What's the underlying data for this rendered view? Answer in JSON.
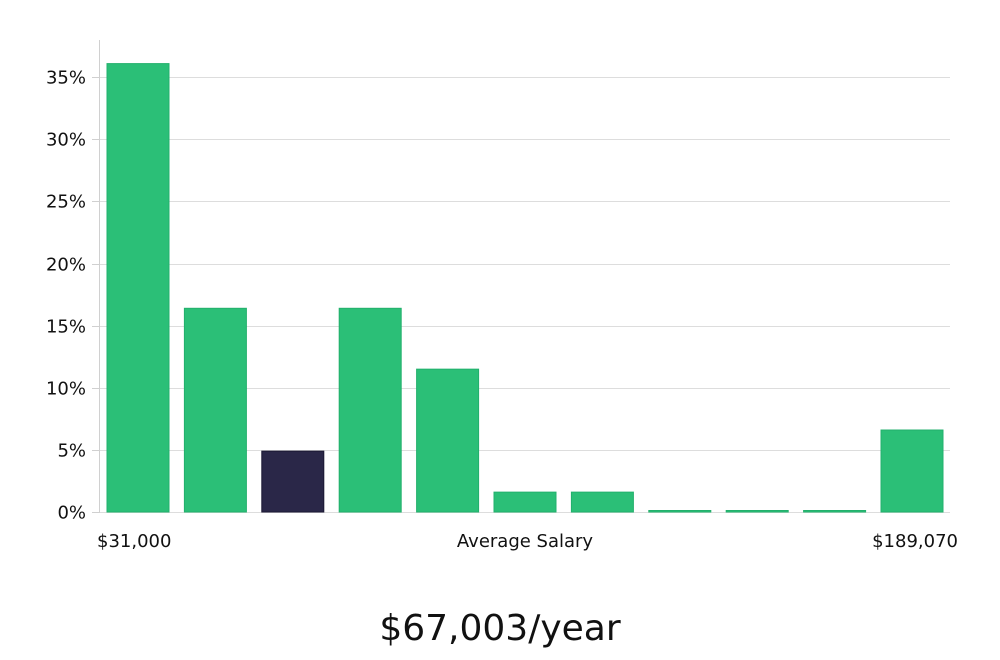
{
  "chart_data": {
    "type": "bar",
    "values": [
      36.1,
      16.4,
      4.9,
      16.4,
      11.5,
      1.6,
      1.6,
      0,
      0,
      0,
      6.6
    ],
    "highlight_index": 2,
    "ylim": [
      0,
      38
    ],
    "yticks": [
      0,
      5,
      10,
      15,
      20,
      25,
      30,
      35
    ],
    "y_tick_labels": [
      "0%",
      "5%",
      "10%",
      "15%",
      "20%",
      "25%",
      "30%",
      "35%"
    ],
    "x_labels": {
      "min": "$31,000",
      "center": "Average Salary",
      "max": "$189,070"
    },
    "grid": true,
    "colors": {
      "bar": "#2bbf77",
      "bar_stroke": "#22b06c",
      "highlight": "#2a2748",
      "highlight_stroke": "#1b1833",
      "grid": "#dddddd",
      "axis": "#d0d0d0"
    }
  },
  "summary": {
    "average_salary": "$67,003/year"
  }
}
